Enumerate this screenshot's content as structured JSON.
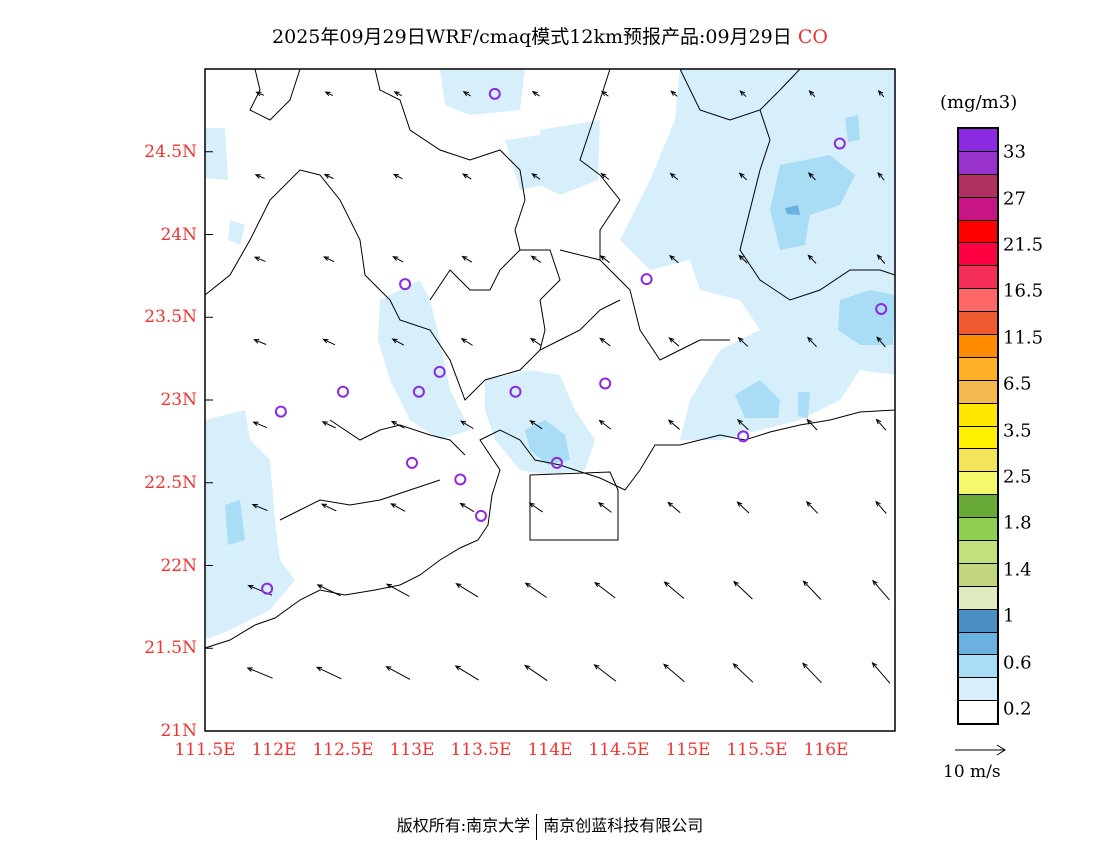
{
  "title": {
    "main": "2025年09月29日WRF/cmaq模式12km预报产品:09月29日",
    "species": "CO"
  },
  "axes": {
    "lat_labels": [
      "24.5N",
      "24N",
      "23.5N",
      "23N",
      "22.5N",
      "22N",
      "21.5N",
      "21N"
    ],
    "lat_values": [
      24.5,
      24,
      23.5,
      23,
      22.5,
      22,
      21.5,
      21
    ],
    "lon_labels": [
      "111.5E",
      "112E",
      "112.5E",
      "113E",
      "113.5E",
      "114E",
      "114.5E",
      "115E",
      "115.5E",
      "116E"
    ],
    "lon_values": [
      111.5,
      112,
      112.5,
      113,
      113.5,
      114,
      114.5,
      115,
      115.5,
      116
    ],
    "lon_range": [
      111.5,
      116.5
    ],
    "lat_range": [
      21,
      25
    ]
  },
  "colorbar": {
    "unit": "(mg/m3)",
    "colors": [
      "#8a2be2",
      "#9932cc",
      "#b03060",
      "#c71585",
      "#ff0000",
      "#ff0040",
      "#f52e58",
      "#ff6666",
      "#f05a30",
      "#ff8c00",
      "#ffb028",
      "#f5b850",
      "#ffe800",
      "#fff000",
      "#f3e45a",
      "#f3f96a",
      "#6aab37",
      "#90cf50",
      "#c2e07c",
      "#c2d67e",
      "#e0ebc0",
      "#4a8fc4",
      "#6ab0e0",
      "#a8ddf5",
      "#d6effb",
      "#ffffff"
    ],
    "labels": [
      "33",
      "27",
      "21.5",
      "16.5",
      "11.5",
      "6.5",
      "3.5",
      "2.5",
      "1.8",
      "1.4",
      "1",
      "0.6",
      "0.2"
    ]
  },
  "wind_legend": "10 m/s",
  "stations": [
    [
      113.6,
      24.85
    ],
    [
      116.1,
      24.55
    ],
    [
      112.95,
      23.7
    ],
    [
      114.7,
      23.73
    ],
    [
      116.4,
      23.55
    ],
    [
      112.5,
      23.05
    ],
    [
      113.2,
      23.17
    ],
    [
      113.05,
      23.05
    ],
    [
      113.75,
      23.05
    ],
    [
      114.4,
      23.1
    ],
    [
      112.05,
      22.93
    ],
    [
      115.4,
      22.78
    ],
    [
      113.0,
      22.62
    ],
    [
      113.35,
      22.52
    ],
    [
      114.05,
      22.62
    ],
    [
      113.5,
      22.3
    ],
    [
      111.95,
      21.86
    ]
  ],
  "footer": {
    "left": "版权所有:南京大学",
    "right": "南京创蓝科技有限公司"
  }
}
